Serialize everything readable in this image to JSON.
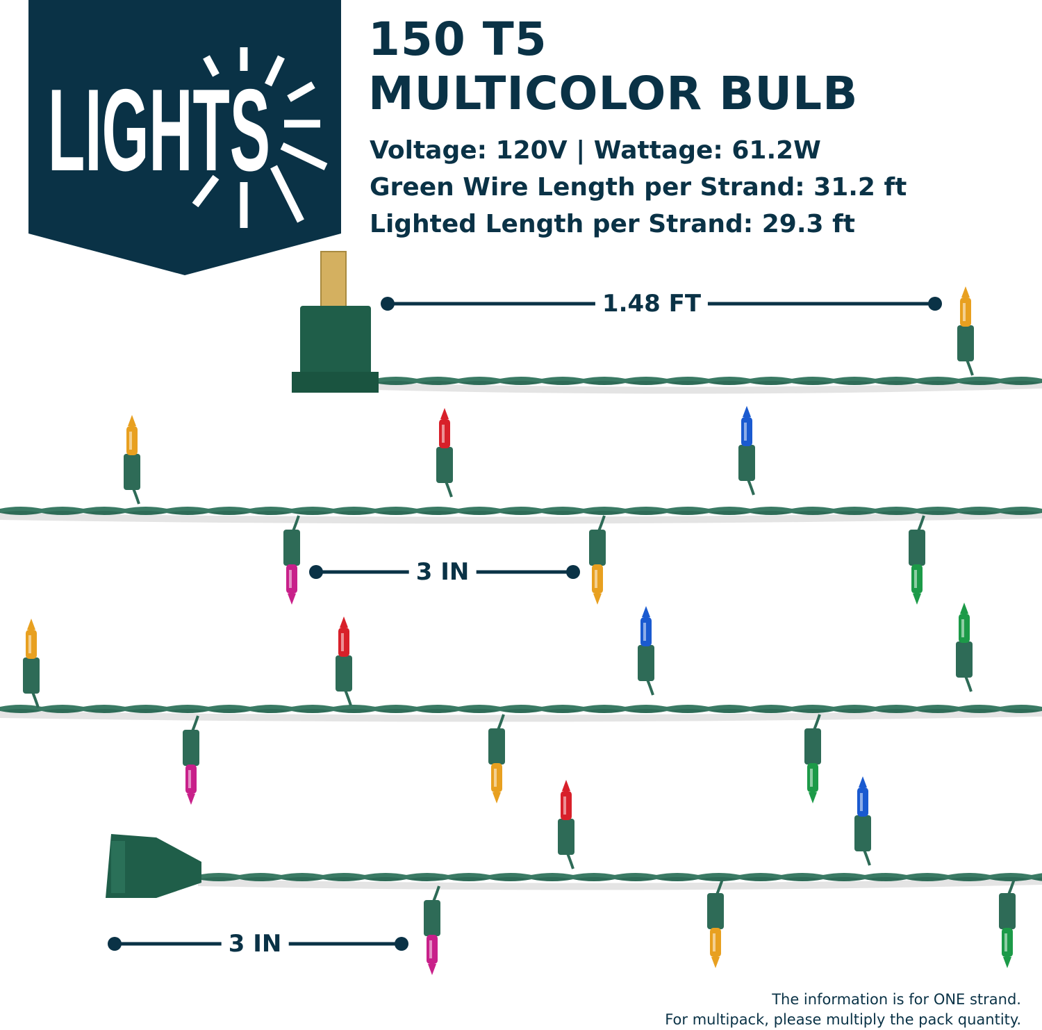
{
  "logo": {
    "text": "LIGHTS",
    "background": "#0a3246"
  },
  "title": {
    "line1": "150 T5",
    "line2": "MULTICOLOR BULB"
  },
  "specs": [
    "Voltage: 120V | Wattage: 61.2W",
    "Green Wire Length per Strand: 31.2 ft",
    "Lighted Length per Strand: 29.3 ft"
  ],
  "dimensions": {
    "plug_to_first_bulb": "1.48 FT",
    "bulb_spacing": "3 IN",
    "end_spacing": "3 IN"
  },
  "note": {
    "line1": "The information is for ONE strand.",
    "line2": "For multipack, please multiply the pack quantity."
  },
  "colors": {
    "wire": "#2e6b57",
    "navy": "#0a3246",
    "amber": "#e8a020",
    "red": "#d8202a",
    "blue": "#1a5ad0",
    "green": "#1c9a48",
    "pink": "#c8208a"
  }
}
